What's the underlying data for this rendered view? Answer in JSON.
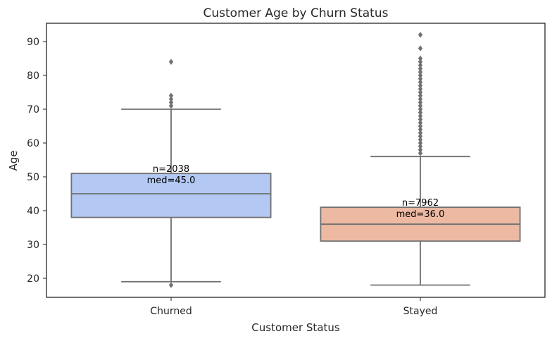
{
  "chart_data": {
    "type": "box",
    "title": "Customer Age by Churn Status",
    "xlabel": "Customer Status",
    "ylabel": "Age",
    "categories": [
      "Churned",
      "Stayed"
    ],
    "yticks": [
      20,
      30,
      40,
      50,
      60,
      70,
      80,
      90
    ],
    "grid": false,
    "boxes": [
      {
        "category": "Churned",
        "whisker_low": 19,
        "q1": 38,
        "median": 45,
        "q3": 51,
        "whisker_high": 70,
        "outliers": [
          18,
          71,
          72,
          73,
          74,
          84
        ],
        "n": 2038,
        "annotation_n": "n=2038",
        "annotation_med": "med=45.0",
        "color": "#b3c9f3"
      },
      {
        "category": "Stayed",
        "whisker_low": 18,
        "q1": 31,
        "median": 36,
        "q3": 41,
        "whisker_high": 56,
        "outliers": [
          57,
          58,
          59,
          60,
          61,
          62,
          63,
          64,
          65,
          66,
          67,
          68,
          69,
          70,
          71,
          72,
          73,
          74,
          75,
          76,
          77,
          78,
          79,
          80,
          81,
          82,
          83,
          84,
          85,
          88,
          92
        ],
        "n": 7962,
        "annotation_n": "n=7962",
        "annotation_med": "med=36.0",
        "color": "#edb9a3"
      }
    ],
    "colors": {
      "line": "#707070",
      "frame": "#262626"
    }
  }
}
